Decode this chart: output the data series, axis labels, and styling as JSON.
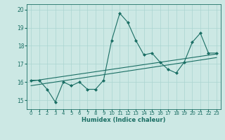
{
  "xlabel": "Humidex (Indice chaleur)",
  "ylabel": "",
  "bg_color": "#cce8e4",
  "grid_color": "#aad4d0",
  "line_color": "#1a6e64",
  "xlim": [
    -0.5,
    23.5
  ],
  "ylim": [
    14.5,
    20.3
  ],
  "yticks": [
    15,
    16,
    17,
    18,
    19,
    20
  ],
  "xticks": [
    0,
    1,
    2,
    3,
    4,
    5,
    6,
    7,
    8,
    9,
    10,
    11,
    12,
    13,
    14,
    15,
    16,
    17,
    18,
    19,
    20,
    21,
    22,
    23
  ],
  "data_points_x": [
    0,
    1,
    2,
    3,
    4,
    5,
    6,
    7,
    8,
    9,
    10,
    11,
    12,
    13,
    14,
    15,
    16,
    17,
    18,
    19,
    20,
    21,
    22,
    23
  ],
  "data_points_y": [
    16.1,
    16.1,
    15.6,
    14.9,
    16.0,
    15.8,
    16.0,
    15.6,
    15.6,
    16.1,
    18.3,
    19.8,
    19.3,
    18.3,
    17.5,
    17.6,
    17.1,
    16.7,
    16.5,
    17.1,
    18.2,
    18.7,
    17.6,
    17.6
  ],
  "trend1_x": [
    0,
    23
  ],
  "trend1_y": [
    15.8,
    17.35
  ],
  "trend2_x": [
    0,
    23
  ],
  "trend2_y": [
    16.05,
    17.55
  ],
  "marker": "D",
  "markersize": 2,
  "linewidth": 0.8,
  "tick_fontsize": 5.0,
  "xlabel_fontsize": 6.0
}
